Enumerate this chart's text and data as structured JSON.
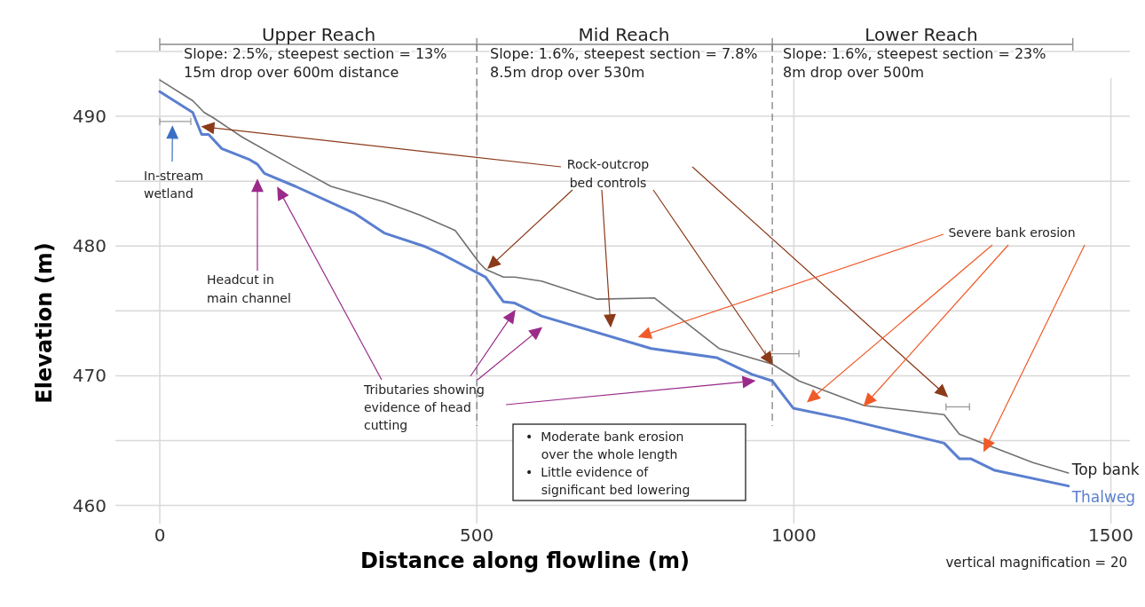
{
  "chart_data": {
    "type": "line",
    "xlabel": "Distance along flowline (m)",
    "ylabel": "Elevation (m)",
    "xlim": [
      -70,
      1530
    ],
    "ylim": [
      458.6,
      495
    ],
    "xticks": [
      0,
      500,
      1000,
      1500
    ],
    "yticks": [
      460,
      {
        "value": 465,
        "label": null
      },
      470,
      {
        "value": 475,
        "label": null
      },
      480,
      {
        "value": 485,
        "label": null
      },
      490,
      {
        "value": 495,
        "label": null
      }
    ],
    "grid": true,
    "marker": "none",
    "line_style": "solid",
    "series": [
      {
        "name": "Top bank",
        "color": "#707070",
        "x": [
          0,
          52,
          70,
          84,
          130,
          210,
          270,
          354,
          410,
          466,
          504,
          514,
          542,
          560,
          602,
          690,
          780,
          882,
          966,
          1008,
          1111,
          1237,
          1261,
          1377,
          1433
        ],
        "values": [
          492.8,
          491.2,
          490.3,
          489.9,
          488.4,
          486.2,
          484.6,
          483.4,
          482.4,
          481.2,
          478.7,
          478.2,
          477.6,
          477.6,
          477.3,
          475.9,
          476.0,
          472.1,
          470.9,
          469.6,
          467.7,
          467.0,
          465.5,
          463.3,
          462.5
        ]
      },
      {
        "name": "Thalweg",
        "color": "#5b7fcf",
        "x": [
          0,
          52,
          66,
          77,
          98,
          140,
          154,
          165,
          214,
          308,
          354,
          416,
          448,
          514,
          542,
          560,
          602,
          775,
          878,
          934,
          966,
          999,
          1078,
          1237,
          1261,
          1279,
          1317,
          1433
        ],
        "values": [
          491.9,
          490.3,
          488.6,
          488.6,
          487.5,
          486.7,
          486.3,
          485.6,
          484.6,
          482.5,
          481.0,
          480.0,
          479.3,
          477.6,
          475.7,
          475.6,
          474.6,
          472.1,
          471.4,
          470.1,
          469.6,
          467.5,
          466.7,
          464.8,
          463.6,
          463.6,
          462.7,
          461.5
        ]
      }
    ],
    "ref_lines": [
      {
        "axis": "x",
        "value": 500,
        "color": "#777777",
        "line_style": "dashed"
      },
      {
        "axis": "x",
        "value": 966,
        "color": "#777777",
        "line_style": "dashed"
      }
    ],
    "annotations": [
      "Upper Reach",
      "Mid Reach",
      "Lower Reach",
      "Slope: 2.5%, steepest section = 13%\n15m drop over 600m distance",
      "Slope: 1.6%, steepest section = 7.8%\n8.5m drop over 530m",
      "Slope: 1.6%, steepest section = 23%\n8m drop over 500m",
      "In-stream\nwetland",
      "Headcut in\nmain channel",
      "Rock-outcrop\nbed controls",
      "Severe bank erosion",
      "Tributaries showing\nevidence of head\ncutting",
      "•  Moderate bank erosion\n    over the whole length\n•  Little evidence of\n    significant bed lowering",
      "vertical magnification = 20"
    ]
  }
}
